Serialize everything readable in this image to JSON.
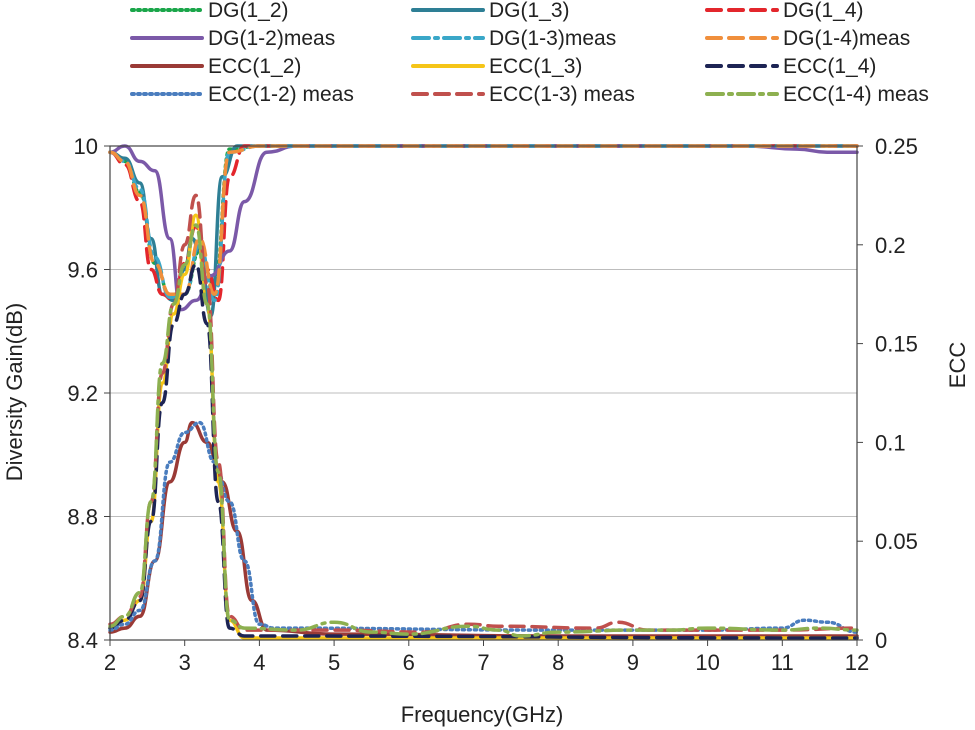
{
  "chart_data": {
    "type": "line",
    "title": "",
    "xlabel": "Frequency(GHz)",
    "ylabel_left": "Diversity Gain(dB)",
    "ylabel_right": "ECC",
    "xlim": [
      2,
      12
    ],
    "ylim_left": [
      8.4,
      10
    ],
    "ylim_right": [
      0,
      0.25
    ],
    "x_ticks": [
      2,
      3,
      4,
      5,
      6,
      7,
      8,
      9,
      10,
      11,
      12
    ],
    "y_left_ticks": [
      "8.4",
      "8.8",
      "9.2",
      "9.6",
      "10"
    ],
    "y_right_ticks": [
      "0",
      "0.05",
      "0.1",
      "0.15",
      "0.2",
      "0.25"
    ],
    "grid": "horizontal",
    "legend_position": "top",
    "series": [
      {
        "name": "DG(1_2)",
        "axis": "left",
        "color": "#1aa64a",
        "dash": "dotted",
        "points": [
          [
            2,
            9.98
          ],
          [
            2.2,
            9.95
          ],
          [
            2.4,
            9.85
          ],
          [
            2.6,
            9.62
          ],
          [
            2.8,
            9.52
          ],
          [
            3.0,
            9.52
          ],
          [
            3.2,
            9.66
          ],
          [
            3.4,
            9.55
          ],
          [
            3.6,
            9.99
          ],
          [
            4,
            10.0
          ],
          [
            12,
            10.0
          ]
        ]
      },
      {
        "name": "DG(1_3)",
        "axis": "left",
        "color": "#2e7f95",
        "dash": "solid",
        "points": [
          [
            2,
            9.98
          ],
          [
            2.2,
            9.96
          ],
          [
            2.4,
            9.88
          ],
          [
            2.55,
            9.7
          ],
          [
            2.7,
            9.52
          ],
          [
            2.85,
            9.5
          ],
          [
            3.0,
            9.6
          ],
          [
            3.1,
            9.7
          ],
          [
            3.2,
            9.66
          ],
          [
            3.35,
            9.45
          ],
          [
            3.5,
            9.9
          ],
          [
            3.7,
            10.0
          ],
          [
            12,
            10.0
          ]
        ]
      },
      {
        "name": "DG(1_4)",
        "axis": "left",
        "color": "#e3262c",
        "dash": "dashed",
        "points": [
          [
            2,
            9.98
          ],
          [
            2.2,
            9.94
          ],
          [
            2.4,
            9.82
          ],
          [
            2.55,
            9.6
          ],
          [
            2.7,
            9.52
          ],
          [
            2.85,
            9.5
          ],
          [
            3.0,
            9.62
          ],
          [
            3.15,
            9.74
          ],
          [
            3.3,
            9.6
          ],
          [
            3.45,
            9.5
          ],
          [
            3.6,
            9.9
          ],
          [
            3.8,
            10.0
          ],
          [
            12,
            10.0
          ]
        ]
      },
      {
        "name": "DG(1-2)meas",
        "axis": "left",
        "color": "#7b59a8",
        "dash": "solid",
        "points": [
          [
            2,
            9.98
          ],
          [
            2.2,
            10.0
          ],
          [
            2.4,
            9.95
          ],
          [
            2.6,
            9.92
          ],
          [
            2.8,
            9.7
          ],
          [
            2.95,
            9.47
          ],
          [
            3.15,
            9.5
          ],
          [
            3.35,
            9.58
          ],
          [
            3.6,
            9.66
          ],
          [
            3.8,
            9.82
          ],
          [
            4.1,
            9.98
          ],
          [
            4.5,
            10.0
          ],
          [
            10.5,
            10.0
          ],
          [
            11.2,
            9.99
          ],
          [
            11.6,
            9.98
          ],
          [
            12,
            9.98
          ]
        ]
      },
      {
        "name": "DG(1-3)meas",
        "axis": "left",
        "color": "#3aa7c8",
        "dash": "dashdot",
        "points": [
          [
            2,
            9.98
          ],
          [
            2.2,
            9.95
          ],
          [
            2.4,
            9.86
          ],
          [
            2.6,
            9.64
          ],
          [
            2.8,
            9.51
          ],
          [
            3.0,
            9.52
          ],
          [
            3.2,
            9.68
          ],
          [
            3.4,
            9.5
          ],
          [
            3.6,
            9.98
          ],
          [
            4,
            10.0
          ],
          [
            12,
            10.0
          ]
        ]
      },
      {
        "name": "DG(1-4)meas",
        "axis": "left",
        "color": "#f08f3c",
        "dash": "dashed",
        "points": [
          [
            2,
            9.98
          ],
          [
            2.2,
            9.95
          ],
          [
            2.4,
            9.84
          ],
          [
            2.6,
            9.62
          ],
          [
            2.8,
            9.52
          ],
          [
            3.0,
            9.52
          ],
          [
            3.2,
            9.7
          ],
          [
            3.4,
            9.52
          ],
          [
            3.6,
            9.98
          ],
          [
            4,
            10.0
          ],
          [
            12,
            10.0
          ]
        ]
      },
      {
        "name": "ECC(1_2)",
        "axis": "right",
        "color": "#9a3a36",
        "dash": "solid",
        "points": [
          [
            2,
            0.004
          ],
          [
            2.2,
            0.006
          ],
          [
            2.4,
            0.012
          ],
          [
            2.6,
            0.04
          ],
          [
            2.8,
            0.08
          ],
          [
            3.0,
            0.1
          ],
          [
            3.1,
            0.11
          ],
          [
            3.3,
            0.1
          ],
          [
            3.5,
            0.08
          ],
          [
            3.7,
            0.055
          ],
          [
            3.9,
            0.02
          ],
          [
            4.1,
            0.005
          ],
          [
            5,
            0.003
          ],
          [
            8,
            0.002
          ],
          [
            12,
            0.002
          ]
        ]
      },
      {
        "name": "ECC(1_3)",
        "axis": "right",
        "color": "#f5c518",
        "dash": "solid",
        "points": [
          [
            2,
            0.006
          ],
          [
            2.2,
            0.01
          ],
          [
            2.4,
            0.02
          ],
          [
            2.55,
            0.06
          ],
          [
            2.7,
            0.13
          ],
          [
            2.85,
            0.165
          ],
          [
            3.0,
            0.185
          ],
          [
            3.15,
            0.215
          ],
          [
            3.3,
            0.17
          ],
          [
            3.45,
            0.08
          ],
          [
            3.6,
            0.01
          ],
          [
            3.8,
            0.001
          ],
          [
            12,
            0.001
          ]
        ]
      },
      {
        "name": "ECC(1_4)",
        "axis": "right",
        "color": "#1d2454",
        "dash": "dashed",
        "points": [
          [
            2,
            0.006
          ],
          [
            2.2,
            0.01
          ],
          [
            2.4,
            0.02
          ],
          [
            2.55,
            0.06
          ],
          [
            2.7,
            0.12
          ],
          [
            2.85,
            0.16
          ],
          [
            3.0,
            0.175
          ],
          [
            3.15,
            0.19
          ],
          [
            3.3,
            0.16
          ],
          [
            3.45,
            0.07
          ],
          [
            3.6,
            0.006
          ],
          [
            3.8,
            0.002
          ],
          [
            12,
            0.001
          ]
        ]
      },
      {
        "name": "ECC(1-2) meas",
        "axis": "right",
        "color": "#4a7dbe",
        "dash": "dotted",
        "points": [
          [
            2,
            0.005
          ],
          [
            2.2,
            0.008
          ],
          [
            2.4,
            0.015
          ],
          [
            2.6,
            0.04
          ],
          [
            2.8,
            0.09
          ],
          [
            3.0,
            0.105
          ],
          [
            3.2,
            0.11
          ],
          [
            3.4,
            0.09
          ],
          [
            3.6,
            0.07
          ],
          [
            3.8,
            0.04
          ],
          [
            4.0,
            0.008
          ],
          [
            4.2,
            0.006
          ],
          [
            8,
            0.005
          ],
          [
            10,
            0.005
          ],
          [
            11.0,
            0.006
          ],
          [
            11.3,
            0.01
          ],
          [
            11.6,
            0.009
          ],
          [
            12,
            0.004
          ]
        ]
      },
      {
        "name": "ECC(1-3) meas",
        "axis": "right",
        "color": "#c0504d",
        "dash": "dashed",
        "points": [
          [
            2,
            0.008
          ],
          [
            2.2,
            0.012
          ],
          [
            2.4,
            0.022
          ],
          [
            2.55,
            0.07
          ],
          [
            2.7,
            0.135
          ],
          [
            2.85,
            0.17
          ],
          [
            3.0,
            0.2
          ],
          [
            3.15,
            0.225
          ],
          [
            3.3,
            0.18
          ],
          [
            3.45,
            0.09
          ],
          [
            3.6,
            0.012
          ],
          [
            3.8,
            0.005
          ],
          [
            5,
            0.005
          ],
          [
            6.2,
            0.004
          ],
          [
            6.8,
            0.008
          ],
          [
            7.2,
            0.007
          ],
          [
            8.5,
            0.006
          ],
          [
            8.8,
            0.009
          ],
          [
            9.2,
            0.005
          ],
          [
            11,
            0.005
          ],
          [
            12,
            0.006
          ]
        ]
      },
      {
        "name": "ECC(1-4) meas",
        "axis": "right",
        "color": "#8db050",
        "dash": "dashdot",
        "points": [
          [
            2,
            0.007
          ],
          [
            2.2,
            0.012
          ],
          [
            2.4,
            0.024
          ],
          [
            2.55,
            0.07
          ],
          [
            2.7,
            0.14
          ],
          [
            2.85,
            0.17
          ],
          [
            3.0,
            0.19
          ],
          [
            3.15,
            0.21
          ],
          [
            3.3,
            0.17
          ],
          [
            3.45,
            0.085
          ],
          [
            3.6,
            0.01
          ],
          [
            3.8,
            0.006
          ],
          [
            4.5,
            0.005
          ],
          [
            5.0,
            0.009
          ],
          [
            5.5,
            0.004
          ],
          [
            6.0,
            0.003
          ],
          [
            6.8,
            0.007
          ],
          [
            7.2,
            0.005
          ],
          [
            7.5,
            0.002
          ],
          [
            8,
            0.004
          ],
          [
            9,
            0.005
          ],
          [
            9.5,
            0.005
          ],
          [
            10,
            0.006
          ],
          [
            11,
            0.005
          ],
          [
            11.5,
            0.006
          ],
          [
            12,
            0.005
          ]
        ]
      }
    ]
  }
}
